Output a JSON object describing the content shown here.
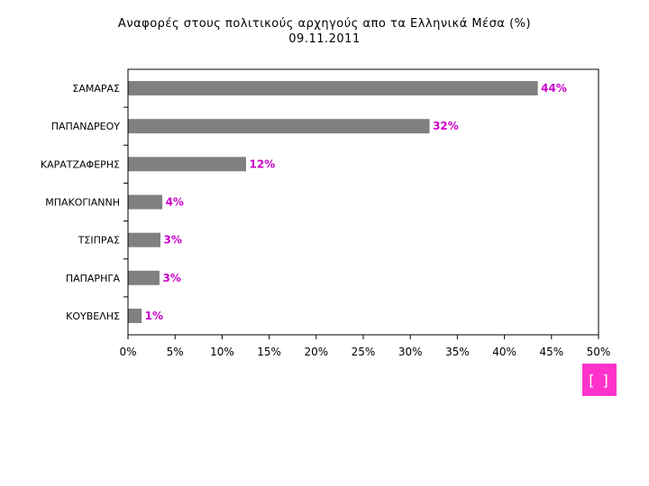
{
  "chart_data": {
    "type": "bar",
    "orientation": "horizontal",
    "title": "Αναφορές στους πολιτικούς αρχηγούς απο τα Ελληνικά Μέσα (%)",
    "subtitle": "09.11.2011",
    "categories": [
      "ΣΑΜΑΡΑΣ",
      "ΠΑΠΑΝΔΡΕΟΥ",
      "ΚΑΡΑΤΖΑΦΕΡΗΣ",
      "ΜΠΑΚΟΓΙΑΝΝΗ",
      "ΤΣΙΠΡΑΣ",
      "ΠΑΠΑΡΗΓΑ",
      "ΚΟΥΒΕΛΗΣ"
    ],
    "values": [
      43.5,
      32,
      12.5,
      3.6,
      3.4,
      3.3,
      1.4
    ],
    "data_labels": [
      "44%",
      "32%",
      "12%",
      "4%",
      "3%",
      "3%",
      "1%"
    ],
    "xlim": [
      0,
      50
    ],
    "xticks": [
      "0%",
      "5%",
      "10%",
      "15%",
      "20%",
      "25%",
      "30%",
      "35%",
      "40%",
      "45%",
      "50%"
    ],
    "grid": false,
    "bar_color": "#808080",
    "label_color": "#cc00cc"
  },
  "badge": {
    "text": "[ ]",
    "color": "#ff33cc"
  }
}
